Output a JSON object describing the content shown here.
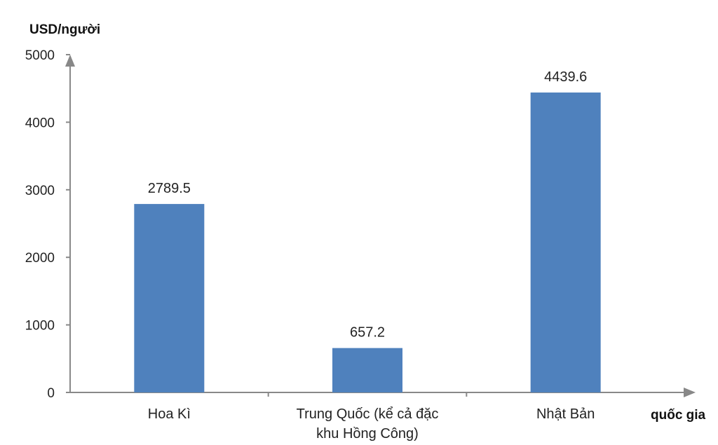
{
  "chart_data": {
    "type": "bar",
    "title": "",
    "xlabel": "quốc gia",
    "ylabel": "USD/người",
    "ylim": [
      0,
      5000
    ],
    "yticks": [
      0,
      1000,
      2000,
      3000,
      4000,
      5000
    ],
    "categories": [
      [
        "Hoa Kì"
      ],
      [
        "Trung Quốc (kể cả đặc",
        "khu Hồng Công)"
      ],
      [
        "Nhật Bản"
      ]
    ],
    "values": [
      2789.5,
      657.2,
      4439.6
    ],
    "value_labels": [
      "2789.5",
      "657.2",
      "4439.6"
    ],
    "bar_color": "#4f81bd",
    "axis_color": "#888888",
    "grid": false,
    "legend": "none"
  }
}
